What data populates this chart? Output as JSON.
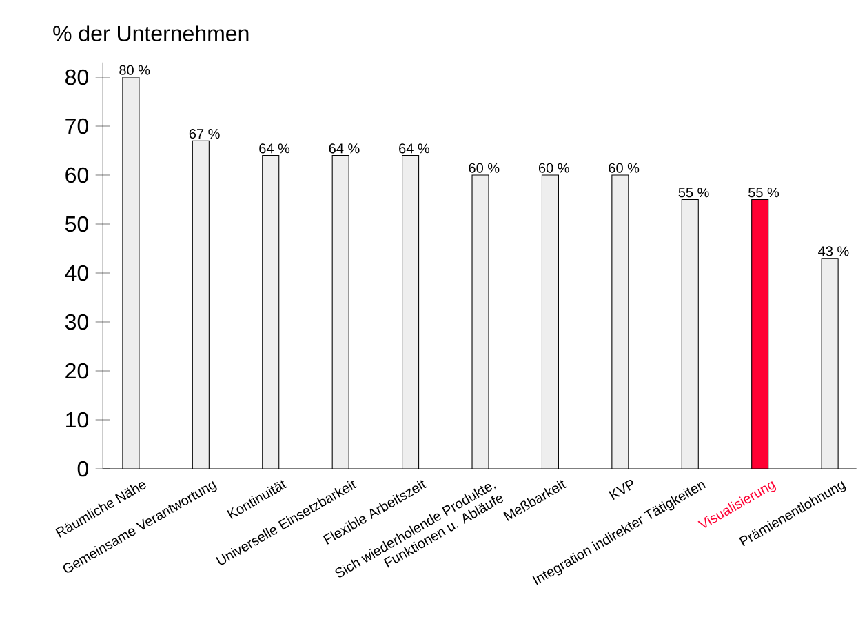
{
  "chart_data": {
    "type": "bar",
    "ylabel": "% der Unternehmen",
    "categories": [
      "Räumliche Nähe",
      "Gemeinsame Verantwortung",
      "Kontinuität",
      "Universelle Einsetzbarkeit",
      "Flexible Arbeitszeit",
      "Sich wiederholende Produkte, Funktionen u. Abläufe",
      "Meßbarkeit",
      "KVP",
      "Integration indirekter Tätigkeiten",
      "Visualisierung",
      "Prämienentlohnung"
    ],
    "values": [
      80,
      67,
      64,
      64,
      64,
      60,
      60,
      60,
      55,
      55,
      43
    ],
    "value_labels": [
      "80 %",
      "67 %",
      "64 %",
      "64 %",
      "64 %",
      "60 %",
      "60 %",
      "60 %",
      "55 %",
      "55 %",
      "43 %"
    ],
    "colors": [
      "#eeeeee",
      "#eeeeee",
      "#eeeeee",
      "#eeeeee",
      "#eeeeee",
      "#eeeeee",
      "#eeeeee",
      "#eeeeee",
      "#eeeeee",
      "#ff0033",
      "#eeeeee"
    ],
    "ylim": [
      0,
      83
    ],
    "yticks": [
      0,
      10,
      20,
      30,
      40,
      50,
      60,
      70,
      80
    ],
    "grid": false
  }
}
